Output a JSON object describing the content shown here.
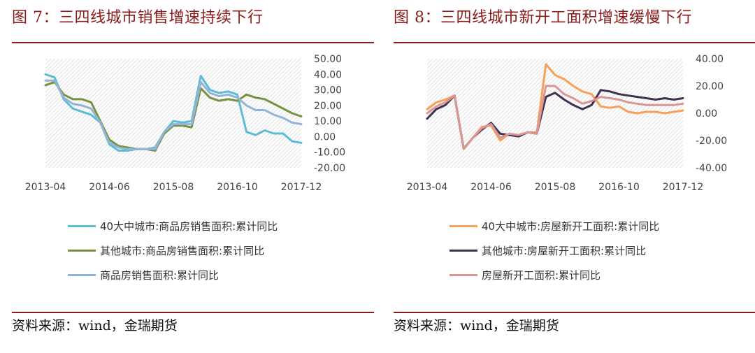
{
  "left": {
    "title": "图 7：三四线城市销售增速持续下行",
    "source": "资料来源：wind，金瑞期货",
    "chart_data": {
      "type": "line",
      "x": [
        "2013-04",
        "2013-06",
        "2013-08",
        "2013-10",
        "2013-12",
        "2014-02",
        "2014-04",
        "2014-06",
        "2014-08",
        "2014-10",
        "2014-12",
        "2015-02",
        "2015-04",
        "2015-06",
        "2015-08",
        "2015-10",
        "2015-12",
        "2016-02",
        "2016-04",
        "2016-06",
        "2016-08",
        "2016-10",
        "2016-12",
        "2017-02",
        "2017-04",
        "2017-06",
        "2017-08",
        "2017-10",
        "2017-12"
      ],
      "x_ticks": [
        "2013-04",
        "2014-06",
        "2015-08",
        "2016-10",
        "2017-12"
      ],
      "y_ticks": [
        "50.00",
        "40.00",
        "30.00",
        "20.00",
        "10.00",
        "0.00",
        "-10.00",
        "-20.00"
      ],
      "ylim": [
        -20,
        50
      ],
      "y_axis_side": "right",
      "legend_position": "bottom",
      "series": [
        {
          "name": "40大中城市:商品房销售面积:累计同比",
          "color": "#5bbcd6",
          "values": [
            40,
            38,
            24,
            18,
            16,
            14,
            9,
            -5,
            -9,
            -9,
            -8,
            -8,
            -7,
            3,
            10,
            9,
            10,
            39,
            30,
            28,
            29,
            27,
            3,
            1,
            4,
            2,
            2,
            -3,
            -4
          ]
        },
        {
          "name": "其他城市:商品房销售面积:累计同比",
          "color": "#76923c",
          "values": [
            33,
            35,
            27,
            24,
            24,
            22,
            10,
            -2,
            -6,
            -7,
            -8,
            -8,
            -9,
            2,
            7,
            7,
            6,
            31,
            25,
            23,
            24,
            23,
            27,
            25,
            24,
            21,
            18,
            15,
            13
          ]
        },
        {
          "name": "商品房销售面积:累计同比",
          "color": "#95b3d7",
          "values": [
            36,
            36,
            25,
            21,
            20,
            18,
            9,
            -4,
            -7,
            -8,
            -8,
            -8,
            -8,
            3,
            8,
            8,
            8,
            35,
            28,
            26,
            27,
            25,
            20,
            17,
            17,
            14,
            12,
            9,
            8
          ]
        }
      ]
    }
  },
  "right": {
    "title": "图 8：三四线城市新开工面积增速缓慢下行",
    "source": "资料来源：wind，金瑞期货",
    "chart_data": {
      "type": "line",
      "x": [
        "2013-04",
        "2013-06",
        "2013-08",
        "2013-10",
        "2013-12",
        "2014-02",
        "2014-04",
        "2014-06",
        "2014-08",
        "2014-10",
        "2014-12",
        "2015-02",
        "2015-04",
        "2015-06",
        "2015-08",
        "2015-10",
        "2015-12",
        "2016-02",
        "2016-04",
        "2016-06",
        "2016-08",
        "2016-10",
        "2016-12",
        "2017-02",
        "2017-04",
        "2017-06",
        "2017-08",
        "2017-10",
        "2017-12"
      ],
      "x_ticks": [
        "2013-04",
        "2014-06",
        "2015-08",
        "2016-10",
        "2017-12"
      ],
      "y_ticks": [
        "40.00",
        "20.00",
        "0.00",
        "-20.00",
        "-40.00"
      ],
      "ylim": [
        -40,
        40
      ],
      "y_axis_side": "right",
      "legend_position": "bottom",
      "series": [
        {
          "name": "40大中城市:房屋新开工面积:累计同比",
          "color": "#f7a05a",
          "values": [
            3,
            8,
            10,
            13,
            -26,
            -18,
            -10,
            -9,
            -20,
            -15,
            -16,
            -14,
            -14,
            36,
            28,
            25,
            20,
            16,
            14,
            5,
            4,
            5,
            1,
            0,
            1,
            1,
            0,
            1,
            2
          ]
        },
        {
          "name": "其他城市:房屋新开工面积:累计同比",
          "color": "#403152",
          "values": [
            -4,
            3,
            6,
            13,
            -26,
            -18,
            -12,
            -7,
            -15,
            -16,
            -17,
            -14,
            -15,
            12,
            15,
            10,
            6,
            3,
            6,
            17,
            16,
            14,
            13,
            12,
            11,
            10,
            11,
            10,
            11
          ]
        },
        {
          "name": "房屋新开工面积:累计同比",
          "color": "#d99694",
          "values": [
            0,
            5,
            8,
            13,
            -26,
            -18,
            -11,
            -8,
            -18,
            -15,
            -16,
            -14,
            -15,
            20,
            20,
            14,
            11,
            7,
            9,
            12,
            11,
            10,
            8,
            7,
            6,
            6,
            6,
            6,
            7
          ]
        }
      ]
    }
  }
}
